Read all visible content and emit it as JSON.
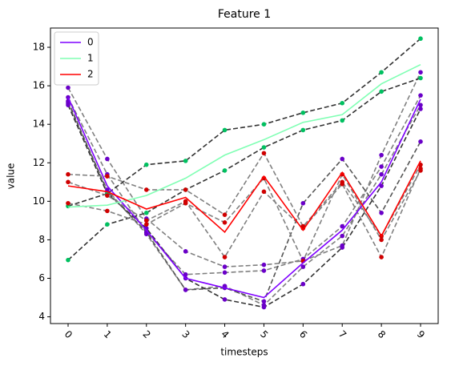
{
  "chart_data": {
    "type": "line",
    "title": "Feature 1",
    "x_label": "timesteps",
    "y_label": "value",
    "x": [
      0,
      1,
      2,
      3,
      4,
      5,
      6,
      7,
      8,
      9
    ],
    "xlim": [
      -0.45,
      9.45
    ],
    "xticks": [
      0,
      1,
      2,
      3,
      4,
      5,
      6,
      7,
      8,
      9
    ],
    "ylim": [
      3.65,
      19.0
    ],
    "yticks": [
      4,
      6,
      8,
      10,
      12,
      14,
      16,
      18
    ],
    "legend_position": "upper-left",
    "series": [
      {
        "name": "0",
        "color": "#7f00ff",
        "values": [
          15.4,
          10.8,
          8.5,
          6.0,
          5.5,
          5.0,
          6.8,
          8.5,
          11.0,
          15.3
        ]
      },
      {
        "name": "1",
        "color": "#80ffb4",
        "values": [
          9.7,
          9.8,
          10.3,
          11.2,
          12.4,
          13.2,
          14.1,
          14.5,
          16.1,
          17.1
        ]
      },
      {
        "name": "2",
        "color": "#ff0000",
        "values": [
          10.8,
          10.5,
          9.6,
          10.2,
          8.4,
          11.3,
          8.5,
          11.5,
          8.2,
          12.1
        ]
      }
    ],
    "members": [
      {
        "color": "#808080",
        "dot_color": "#6a00c8",
        "values": [
          15.9,
          12.2,
          9.1,
          7.4,
          6.6,
          6.7,
          6.9,
          7.7,
          12.4,
          16.7
        ]
      },
      {
        "color": "#808080",
        "dot_color": "#6a00c8",
        "values": [
          15.4,
          11.4,
          8.4,
          6.2,
          6.3,
          6.4,
          7.0,
          8.7,
          11.8,
          15.5
        ]
      },
      {
        "color": "#808080",
        "dot_color": "#6a00c8",
        "values": [
          15.1,
          10.6,
          8.3,
          5.4,
          5.6,
          4.6,
          6.6,
          8.2,
          11.4,
          15.0
        ]
      },
      {
        "color": "#333333",
        "dot_color": "#6a00c8",
        "values": [
          15.0,
          10.4,
          8.6,
          6.0,
          4.9,
          4.5,
          5.7,
          7.6,
          10.8,
          14.8
        ]
      },
      {
        "color": "#555555",
        "dot_color": "#6a00c8",
        "values": [
          15.2,
          10.5,
          8.4,
          5.4,
          5.5,
          4.8,
          9.9,
          12.2,
          9.4,
          13.1
        ]
      },
      {
        "color": "#333333",
        "dot_color": "#00c060",
        "values": [
          9.75,
          10.4,
          11.9,
          12.1,
          13.7,
          14.0,
          14.6,
          15.1,
          16.7,
          18.45
        ]
      },
      {
        "color": "#333333",
        "dot_color": "#00c060",
        "values": [
          6.95,
          8.8,
          9.4,
          10.6,
          11.6,
          12.8,
          13.7,
          14.2,
          15.7,
          16.4
        ]
      },
      {
        "color": "#808080",
        "dot_color": "#d00000",
        "values": [
          11.4,
          11.3,
          10.6,
          10.6,
          9.3,
          12.5,
          8.7,
          11.0,
          8.2,
          11.9
        ]
      },
      {
        "color": "#808080",
        "dot_color": "#d00000",
        "values": [
          11.0,
          10.3,
          9.0,
          10.0,
          7.1,
          10.5,
          8.6,
          10.9,
          7.1,
          11.7
        ]
      },
      {
        "color": "#808080",
        "dot_color": "#d00000",
        "values": [
          9.9,
          9.5,
          8.8,
          9.9,
          8.9,
          11.2,
          6.9,
          11.4,
          8.0,
          11.6
        ]
      }
    ]
  }
}
